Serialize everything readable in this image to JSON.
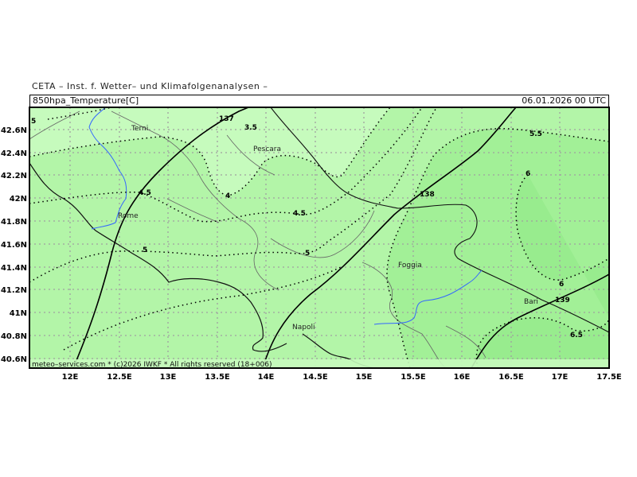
{
  "header": {
    "title": "CETA – Inst. f. Wetter– und Klimafolgenanalysen –",
    "parameter": "850hpa_Temperature[C]",
    "valid_time": "06.01.2026 00 UTC"
  },
  "footer": {
    "copyright": "meteo–services.com * (c)2026 IWKF * All rights reserved (18+006)"
  },
  "axes": {
    "lon_labels": [
      "12E",
      "12.5E",
      "13E",
      "13.5E",
      "14E",
      "14.5E",
      "15E",
      "15.5E",
      "16E",
      "16.5E",
      "17E",
      "17.5E"
    ],
    "lat_labels": [
      "42.6N",
      "42.4N",
      "42.2N",
      "42N",
      "41.8N",
      "41.6N",
      "41.4N",
      "41.2N",
      "41N",
      "40.8N",
      "40.6N"
    ]
  },
  "cities": [
    "Terni",
    "Pescara",
    "Rome",
    "Foggia",
    "Bari",
    "Napoli"
  ],
  "temperature_labels": [
    "5",
    "3.5",
    "4.5",
    "4",
    "4.5",
    "5",
    "5",
    "5.5",
    "6",
    "6",
    "6.5"
  ],
  "geopotential_labels": [
    "137",
    "138",
    "139"
  ],
  "colors": {
    "shade_light": "#c6fbbd",
    "shade_mid": "#b3f5a8",
    "shade_dark": "#a2f097",
    "shade_darkest": "#98ec8e",
    "grid": "#a0a0a0",
    "river": "#3366ff",
    "border": "#555555"
  }
}
